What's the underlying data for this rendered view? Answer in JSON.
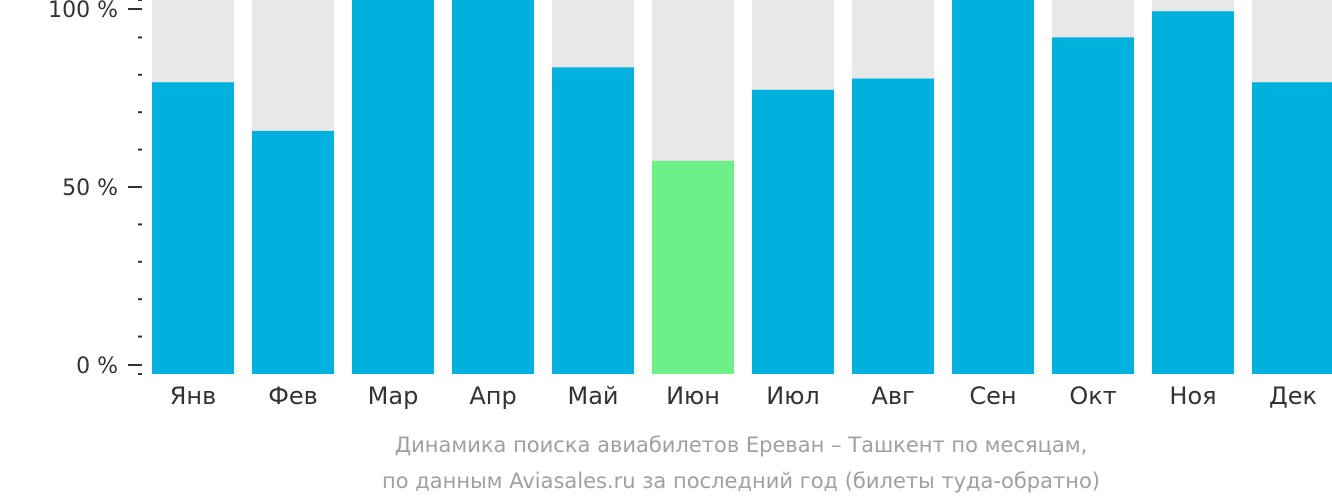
{
  "colors": {
    "background": "#e8e8e8",
    "bar": "#00b1dd",
    "highlight": "#6ef088",
    "axis": "#333333",
    "caption": "#a0a0a0"
  },
  "caption": {
    "line1": "Динамика поиска авиабилетов Ереван – Ташкент по месяцам,",
    "line2": "по данным Aviasales.ru за последний год (билеты туда-обратно)"
  },
  "chart_data": {
    "type": "bar",
    "categories": [
      "Янв",
      "Фев",
      "Мар",
      "Апр",
      "Май",
      "Июн",
      "Июл",
      "Авг",
      "Сен",
      "Окт",
      "Ноя",
      "Дек"
    ],
    "values": [
      78,
      65,
      100,
      100,
      82,
      57,
      76,
      79,
      100,
      90,
      97,
      78
    ],
    "highlight_index": 5,
    "ylim": [
      0,
      100
    ],
    "yticks": [
      {
        "value": 0,
        "label": "0 %"
      },
      {
        "value": 50,
        "label": "50 %"
      },
      {
        "value": 100,
        "label": "100 %"
      }
    ],
    "minor_tick_step": 10,
    "grid": false,
    "legend": "none"
  }
}
